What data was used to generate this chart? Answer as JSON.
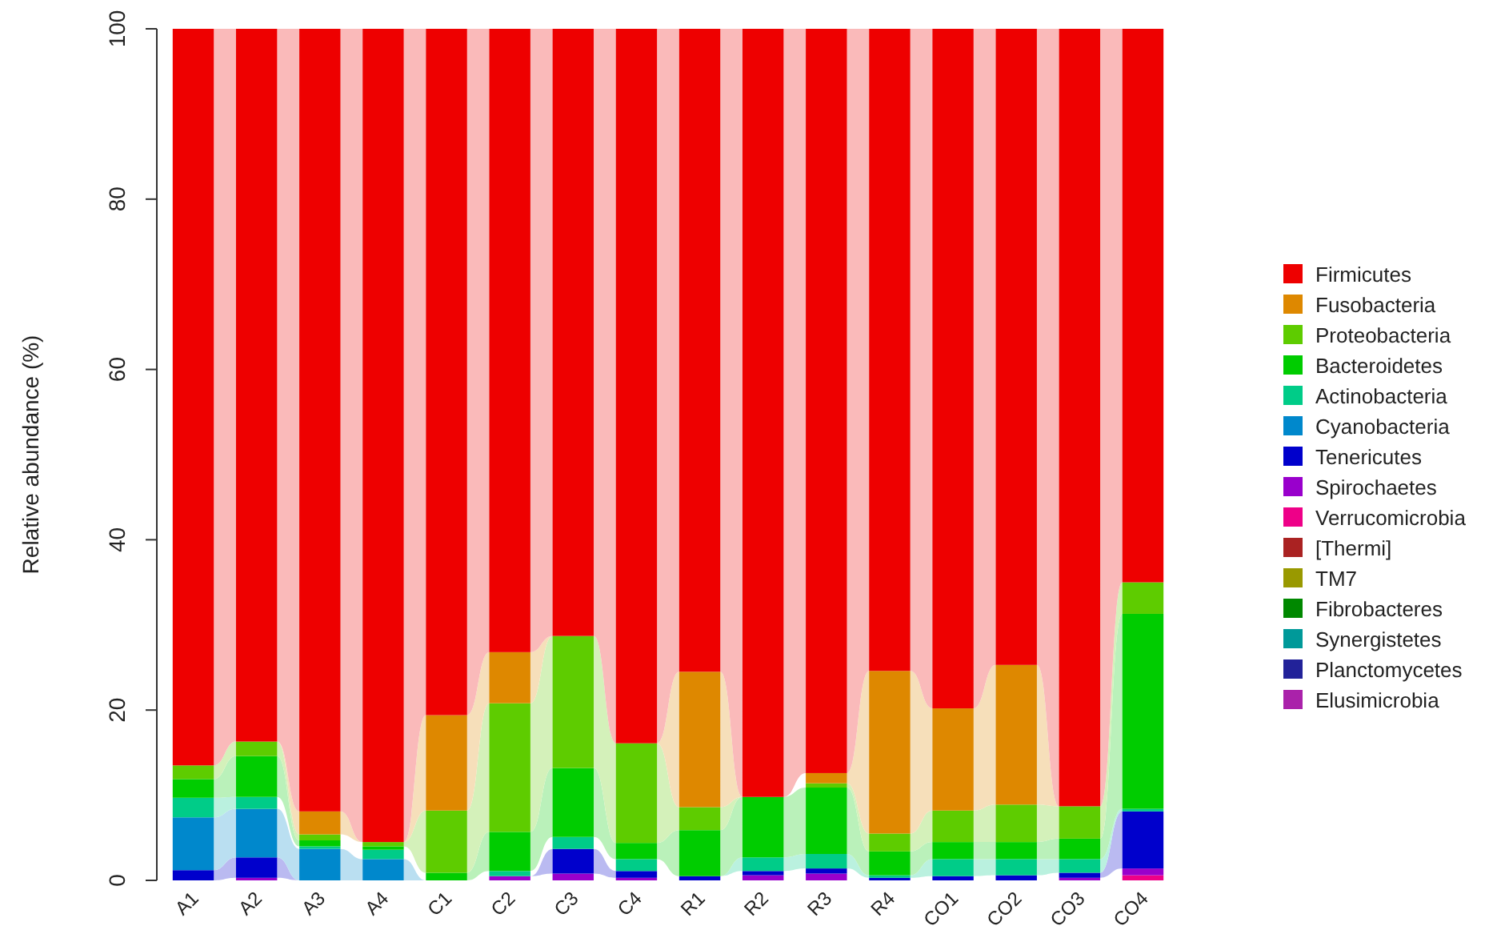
{
  "chart_data": {
    "type": "bar",
    "stacked": true,
    "ylabel": "Relative abundance (%)",
    "categories": [
      "A1",
      "A2",
      "A3",
      "A4",
      "C1",
      "C2",
      "C3",
      "C4",
      "R1",
      "R2",
      "R3",
      "R4",
      "CO1",
      "CO2",
      "CO3",
      "CO4"
    ],
    "ylim": [
      0,
      100
    ],
    "yticks": [
      0,
      20,
      40,
      60,
      80,
      100
    ],
    "legend": "right",
    "grid": false,
    "series": [
      {
        "name": "Elusimicrobia",
        "color": "#aa22aa",
        "values": [
          0,
          0,
          0,
          0,
          0,
          0,
          0,
          0,
          0,
          0,
          0,
          0,
          0,
          0,
          0,
          0
        ]
      },
      {
        "name": "Planctomycetes",
        "color": "#222299",
        "values": [
          0,
          0,
          0,
          0,
          0,
          0,
          0,
          0,
          0,
          0,
          0,
          0,
          0,
          0,
          0,
          0
        ]
      },
      {
        "name": "Synergistetes",
        "color": "#009999",
        "values": [
          0,
          0,
          0,
          0,
          0,
          0,
          0,
          0,
          0,
          0,
          0,
          0,
          0,
          0,
          0,
          0
        ]
      },
      {
        "name": "Fibrobacteres",
        "color": "#008800",
        "values": [
          0,
          0,
          0,
          0,
          0,
          0,
          0,
          0,
          0,
          0,
          0,
          0,
          0,
          0,
          0,
          0
        ]
      },
      {
        "name": "TM7",
        "color": "#999900",
        "values": [
          0,
          0,
          0,
          0,
          0,
          0,
          0,
          0,
          0,
          0,
          0,
          0,
          0,
          0,
          0,
          0
        ]
      },
      {
        "name": "[Thermi]",
        "color": "#aa2222",
        "values": [
          0,
          0,
          0,
          0,
          0,
          0,
          0,
          0,
          0,
          0,
          0,
          0,
          0,
          0,
          0,
          0
        ]
      },
      {
        "name": "Verrucomicrobia",
        "color": "#ee0088",
        "values": [
          0,
          0,
          0,
          0,
          0,
          0,
          0,
          0,
          0,
          0,
          0,
          0,
          0,
          0,
          0,
          0.6
        ]
      },
      {
        "name": "Spirochaetes",
        "color": "#9900cc",
        "values": [
          0,
          0.3,
          0,
          0,
          0,
          0.5,
          0.8,
          0.3,
          0,
          0.6,
          0.8,
          0,
          0,
          0,
          0.3,
          0.8
        ]
      },
      {
        "name": "Tenericutes",
        "color": "#0000cc",
        "values": [
          1.2,
          2.4,
          0,
          0,
          0,
          0,
          2.9,
          0.8,
          0.5,
          0.5,
          0.6,
          0.3,
          0.5,
          0.6,
          0.6,
          6.7
        ]
      },
      {
        "name": "Cyanobacteria",
        "color": "#0088cc",
        "values": [
          6.2,
          5.7,
          3.7,
          2.5,
          0,
          0,
          0,
          0,
          0,
          0,
          0,
          0,
          0,
          0,
          0,
          0
        ]
      },
      {
        "name": "Actinobacteria",
        "color": "#00cc88",
        "values": [
          2.3,
          1.4,
          0.3,
          1.1,
          0,
          0.6,
          1.4,
          1.4,
          0,
          1.6,
          1.7,
          0.3,
          2.0,
          1.9,
          1.6,
          0.3
        ]
      },
      {
        "name": "Bacteroidetes",
        "color": "#00cc00",
        "values": [
          2.2,
          4.8,
          0.7,
          0.4,
          0.9,
          4.6,
          8.1,
          1.9,
          5.4,
          7.1,
          7.8,
          2.8,
          2.0,
          2.0,
          2.4,
          22.9
        ]
      },
      {
        "name": "Proteobacteria",
        "color": "#5ecc00",
        "values": [
          1.6,
          1.7,
          0.7,
          0.5,
          7.3,
          15.1,
          15.5,
          11.7,
          2.7,
          0,
          0.5,
          2.1,
          3.7,
          4.4,
          3.8,
          3.7
        ]
      },
      {
        "name": "Fusobacteria",
        "color": "#de8800",
        "values": [
          0,
          0,
          2.7,
          0,
          11.2,
          6.0,
          0,
          0,
          15.9,
          0,
          1.2,
          19.1,
          12.0,
          16.4,
          0,
          0
        ]
      },
      {
        "name": "Firmicutes",
        "color": "#ee0000",
        "values": [
          86.5,
          83.7,
          91.9,
          95.5,
          80.6,
          73.2,
          71.3,
          83.9,
          75.5,
          90.2,
          87.4,
          75.4,
          79.8,
          74.7,
          91.3,
          65.0
        ]
      }
    ]
  }
}
